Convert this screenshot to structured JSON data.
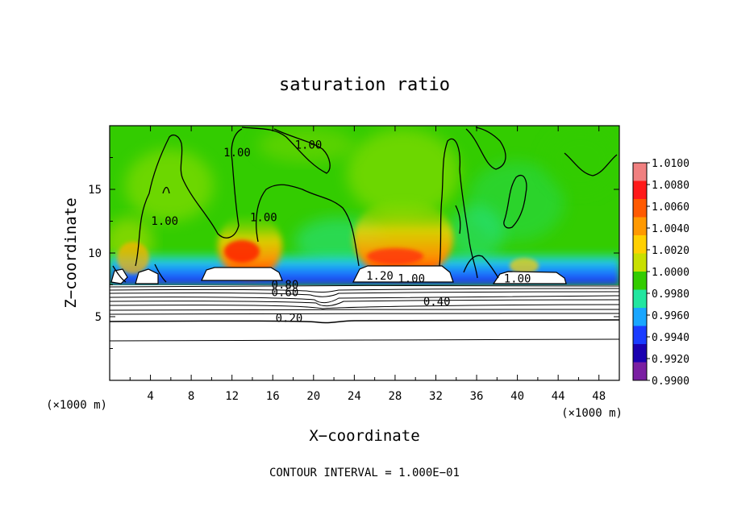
{
  "chart_data": {
    "type": "heatmap",
    "title": "saturation ratio",
    "xlabel": "X−coordinate",
    "ylabel": "Z−coordinate",
    "x_unit_left": "(×1000 m)",
    "x_unit_right": "(×1000 m)",
    "xlim": [
      0,
      50
    ],
    "ylim": [
      0,
      20
    ],
    "x_ticks": [
      4,
      8,
      12,
      16,
      20,
      24,
      28,
      32,
      36,
      40,
      44,
      48
    ],
    "y_ticks": [
      5,
      10,
      15
    ],
    "x_tick_labels": [
      "4",
      "8",
      "12",
      "16",
      "20",
      "24",
      "28",
      "32",
      "36",
      "40",
      "44",
      "48"
    ],
    "y_tick_labels": [
      "5",
      "10",
      "15"
    ],
    "colorbar": {
      "range": [
        0.99,
        1.01
      ],
      "labels": [
        "1.0100",
        "1.0080",
        "1.0060",
        "1.0040",
        "1.0020",
        "1.0000",
        "0.9980",
        "0.9960",
        "0.9940",
        "0.9920",
        "0.9900"
      ],
      "colors": [
        "#f08080",
        "#ff1a1a",
        "#ff5a00",
        "#ff9900",
        "#ffd000",
        "#c8e000",
        "#33cc00",
        "#22e6a0",
        "#19a6ff",
        "#1a3cff",
        "#1a00b0",
        "#7a1fa2"
      ]
    },
    "contour_labels": [
      {
        "text": "1.00",
        "x": 19.5,
        "z": 18.2
      },
      {
        "text": "1.00",
        "x": 12.5,
        "z": 17.6
      },
      {
        "text": "1.00",
        "x": 5.4,
        "z": 12.2
      },
      {
        "text": "1.00",
        "x": 15.1,
        "z": 12.5
      },
      {
        "text": "1.20",
        "x": 26.5,
        "z": 7.9
      },
      {
        "text": "1.00",
        "x": 29.6,
        "z": 7.7
      },
      {
        "text": "1.00",
        "x": 40.0,
        "z": 7.7
      },
      {
        "text": "0.80",
        "x": 17.2,
        "z": 7.2
      },
      {
        "text": "0.60",
        "x": 17.2,
        "z": 6.6
      },
      {
        "text": "0.40",
        "x": 32.1,
        "z": 5.9
      },
      {
        "text": "0.20",
        "x": 17.6,
        "z": 4.6
      }
    ],
    "contour_interval_text": "CONTOUR INTERVAL = 1.000E−01"
  }
}
